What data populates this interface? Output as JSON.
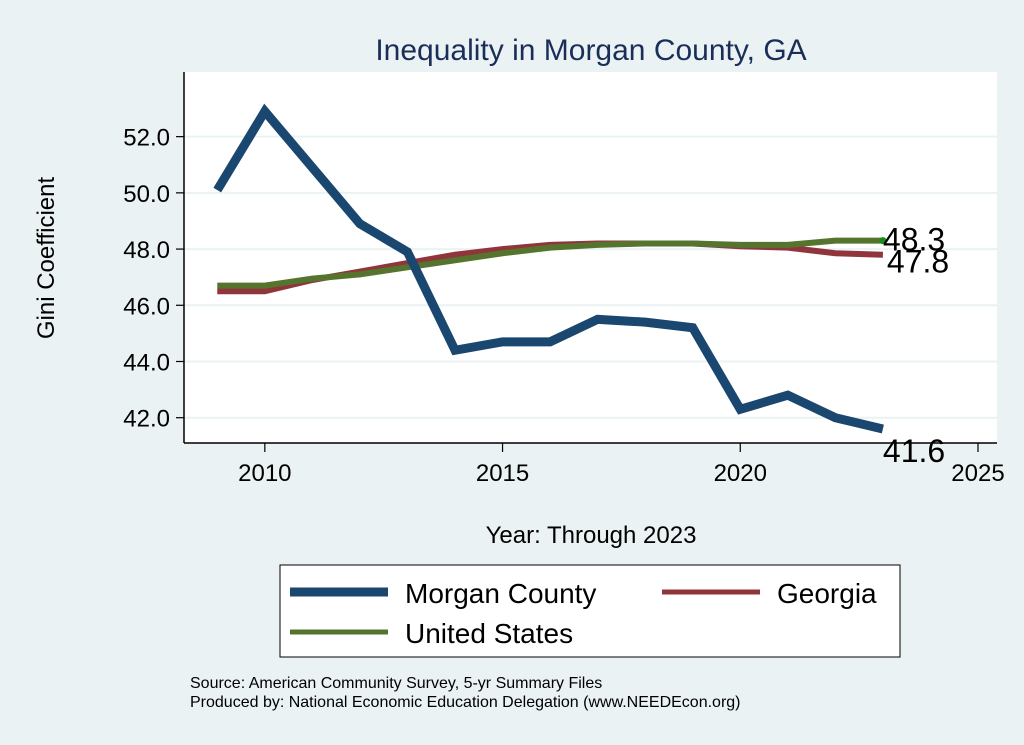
{
  "chart_data": {
    "type": "line",
    "title": "Inequality in Morgan County, GA",
    "xlabel": "Year: Through 2023",
    "ylabel": "Gini Coefficient",
    "xlim": [
      2008.3,
      2025.4
    ],
    "ylim": [
      41.1,
      54.3
    ],
    "x_ticks": [
      2010,
      2015,
      2020,
      2025
    ],
    "y_ticks": [
      42.0,
      44.0,
      46.0,
      48.0,
      50.0,
      52.0
    ],
    "x_tick_labels": [
      "2010",
      "2015",
      "2020",
      "2025"
    ],
    "y_tick_labels": [
      "42.0",
      "44.0",
      "46.0",
      "48.0",
      "50.0",
      "52.0"
    ],
    "grid": "horizontal",
    "x": [
      2009,
      2010,
      2011,
      2012,
      2013,
      2014,
      2015,
      2016,
      2017,
      2018,
      2019,
      2020,
      2021,
      2022,
      2023
    ],
    "series": [
      {
        "name": "Morgan County",
        "color": "#1a476f",
        "values": [
          50.1,
          52.9,
          50.9,
          48.9,
          47.9,
          44.4,
          44.7,
          44.7,
          45.5,
          45.4,
          45.2,
          42.3,
          42.8,
          42.0,
          41.6
        ],
        "end_label": "41.6"
      },
      {
        "name": "Georgia",
        "color": "#90353b",
        "values": [
          46.5,
          46.5,
          46.9,
          47.2,
          47.5,
          47.8,
          48.0,
          48.15,
          48.2,
          48.2,
          48.2,
          48.1,
          48.05,
          47.85,
          47.8
        ],
        "end_label": "47.8"
      },
      {
        "name": "United States",
        "color": "#55752f",
        "values": [
          46.7,
          46.7,
          46.95,
          47.1,
          47.35,
          47.6,
          47.85,
          48.05,
          48.15,
          48.2,
          48.2,
          48.15,
          48.15,
          48.3,
          48.3
        ],
        "end_label": "48.3"
      }
    ],
    "legend": {
      "placement": "bottom",
      "entries": [
        "Morgan County",
        "Georgia",
        "United States"
      ]
    },
    "notes": [
      "Source: American Community Survey, 5-yr Summary Files",
      "Produced by: National Economic Education Delegation (www.NEEDEcon.org)"
    ]
  },
  "colors": {
    "background": "#eaf2f3",
    "plot_background": "#ffffff",
    "grid": "#eaf2f3",
    "title": "#1a2e58"
  }
}
